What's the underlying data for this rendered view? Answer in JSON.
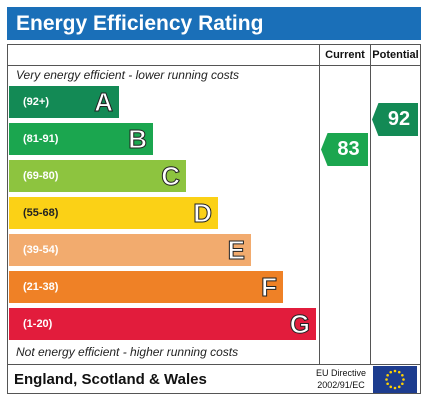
{
  "title": "Energy Efficiency Rating",
  "columns": {
    "current": "Current",
    "potential": "Potential"
  },
  "top_caption": "Very energy efficient - lower running costs",
  "bottom_caption": "Not energy efficient - higher running costs",
  "bands": [
    {
      "range": "(92+)",
      "letter": "A",
      "color": "#138a55"
    },
    {
      "range": "(81-91)",
      "letter": "B",
      "color": "#1ba64f"
    },
    {
      "range": "(69-80)",
      "letter": "C",
      "color": "#8dc43f"
    },
    {
      "range": "(55-68)",
      "letter": "D",
      "color": "#fbd116"
    },
    {
      "range": "(39-54)",
      "letter": "E",
      "color": "#f2ab6e"
    },
    {
      "range": "(21-38)",
      "letter": "F",
      "color": "#ef8126"
    },
    {
      "range": "(1-20)",
      "letter": "G",
      "color": "#e21c3c"
    }
  ],
  "current_rating": {
    "value": "83",
    "color": "#1ba64f"
  },
  "potential_rating": {
    "value": "92",
    "color": "#138a55"
  },
  "footer": {
    "region": "England, Scotland & Wales",
    "directive_line1": "EU Directive",
    "directive_line2": "2002/91/EC"
  },
  "eu_flag": {
    "icon": "eu-flag-icon",
    "background": "#1d3c8f",
    "stars": "#ffd200"
  }
}
